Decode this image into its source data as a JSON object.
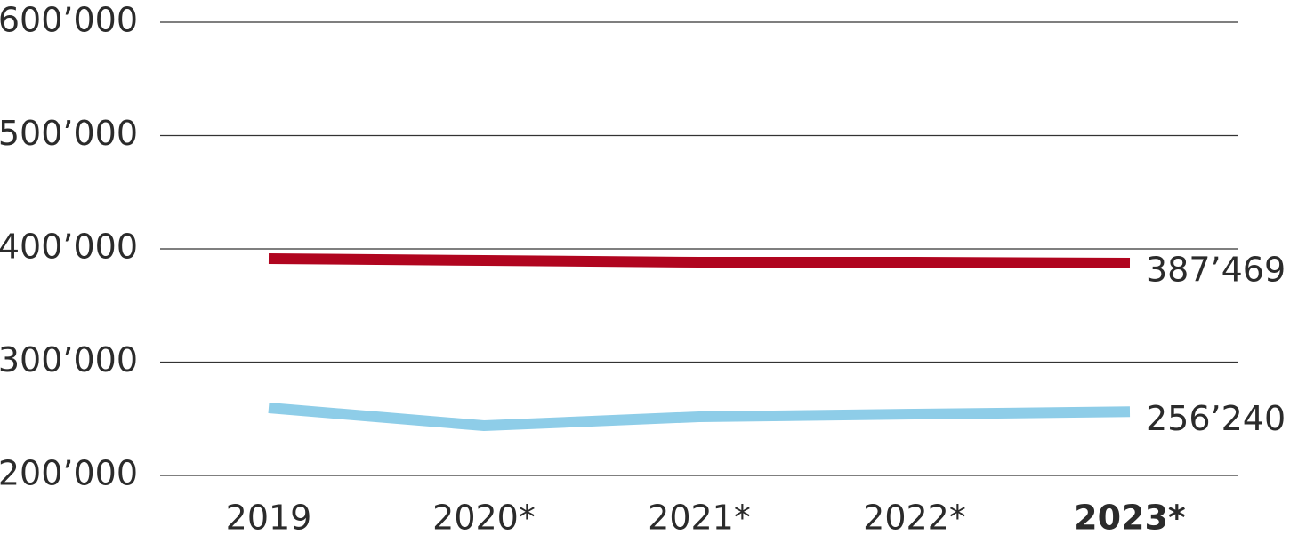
{
  "chart_data": {
    "type": "line",
    "categories": [
      "2019",
      "2020*",
      "2021*",
      "2022*",
      "2023*"
    ],
    "series": [
      {
        "color": "#b0051f",
        "values": [
          391400,
          389800,
          388200,
          388200,
          387469
        ],
        "value_labels": [
          null,
          null,
          null,
          null,
          "387’469"
        ]
      },
      {
        "color": "#8ecde8",
        "values": [
          259600,
          243900,
          251800,
          254100,
          256240
        ],
        "value_labels": [
          null,
          null,
          null,
          null,
          "256’240"
        ]
      }
    ],
    "ylim": [
      200000,
      600000
    ],
    "yticks": [
      {
        "value": 200000,
        "label": "200’000"
      },
      {
        "value": 300000,
        "label": "300’000"
      },
      {
        "value": 400000,
        "label": "400’000"
      },
      {
        "value": 500000,
        "label": "500’000"
      },
      {
        "value": 600000,
        "label": "600’000"
      }
    ],
    "grid": true
  }
}
